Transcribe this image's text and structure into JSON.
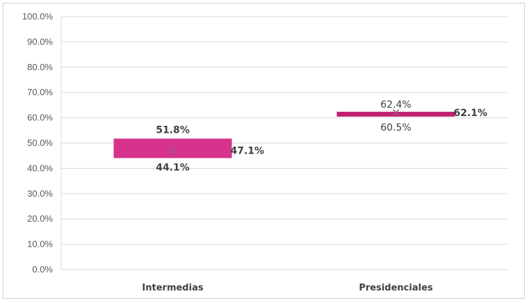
{
  "chart_data": {
    "type": "box",
    "categories": [
      "Intermedias",
      "Presidenciales"
    ],
    "series": [
      {
        "values": [
          {
            "min": 44.1,
            "max": 51.8,
            "mean": 47.1
          },
          {
            "min": 60.5,
            "max": 62.4,
            "mean": 62.1
          }
        ]
      }
    ],
    "labels": {
      "max": [
        "51.8%",
        "62.4%"
      ],
      "min": [
        "44.1%",
        "60.5%"
      ],
      "mean": [
        "47.1%",
        "62.1%"
      ]
    },
    "ylim": [
      0,
      100
    ],
    "yticks": [
      "0.0%",
      "10.0%",
      "20.0%",
      "30.0%",
      "40.0%",
      "50.0%",
      "60.0%",
      "70.0%",
      "80.0%",
      "90.0%",
      "100.0%"
    ],
    "grid": true,
    "colors": {
      "box": "#d6338c",
      "box_thin": "#c2206f",
      "mean_marker": "#9b5a86",
      "gridline": "#d9d9d9"
    }
  }
}
